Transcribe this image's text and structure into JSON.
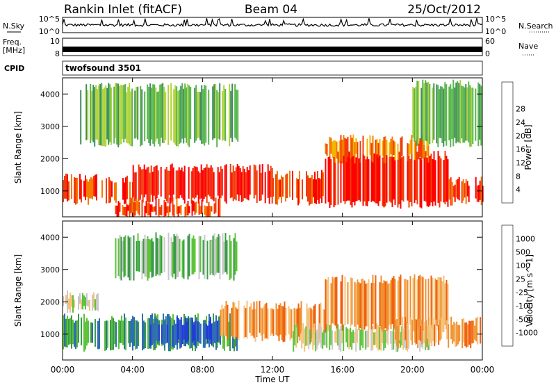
{
  "header": {
    "station": "Rankin Inlet (fitACF)",
    "beam": "Beam 04",
    "date": "25/Oct/2012"
  },
  "top_panels": {
    "nsky_label": "N.Sky",
    "nsky_tick_top": "10^5",
    "nsky_tick_bottom": "10^0",
    "nsearch_label": "N.Search",
    "nsearch_tick_top": "10^5",
    "nsearch_tick_bottom": "10^0",
    "freq_label_1": "Freq.",
    "freq_label_2": "[MHz]",
    "freq_tick_top": "10",
    "freq_tick_bottom": "8",
    "nave_label": "Nave",
    "nave_tick_top": "60",
    "nave_tick_bottom": "0",
    "cpid_label": "CPID",
    "cpid_value": "twofsound 3501"
  },
  "x_axis": {
    "label": "Time UT",
    "ticks": [
      "00:00",
      "04:00",
      "08:00",
      "12:00",
      "16:00",
      "20:00",
      "00:00"
    ],
    "range_hours": [
      0,
      24
    ]
  },
  "chart_data": [
    {
      "type": "heatmap",
      "quantity": "Power",
      "ylabel": "Slant Range [km]",
      "ylim": [
        200,
        4500
      ],
      "yticks": [
        "1000",
        "2000",
        "3000",
        "4000"
      ],
      "colorbar_label": "Power [dB]",
      "colorbar_ticks": [
        "4",
        "8",
        "12",
        "16",
        "20",
        "24",
        "28"
      ],
      "colorbar_colors": [
        "#0000ff",
        "#2c5fb0",
        "#3e8f5a",
        "#58b64a",
        "#b0d23a",
        "#f4b400",
        "#f57c00",
        "#f03e0a",
        "#ff0000"
      ],
      "bands": [
        {
          "t0": 0,
          "t1": 4,
          "r0": 700,
          "r1": 1400,
          "level": 7
        },
        {
          "t0": 4,
          "t1": 12,
          "r0": 750,
          "r1": 1700,
          "level": 8
        },
        {
          "t0": 12,
          "t1": 15,
          "r0": 700,
          "r1": 1500,
          "level": 7
        },
        {
          "t0": 15,
          "t1": 22,
          "r0": 600,
          "r1": 2100,
          "level": 8
        },
        {
          "t0": 22,
          "t1": 24,
          "r0": 700,
          "r1": 1300,
          "level": 7
        },
        {
          "t0": 3,
          "t1": 9,
          "r0": 250,
          "r1": 650,
          "level": 7
        },
        {
          "t0": 15,
          "t1": 21,
          "r0": 2000,
          "r1": 2600,
          "level": 6
        },
        {
          "t0": 1,
          "t1": 10,
          "r0": 2500,
          "r1": 4200,
          "level": 3
        },
        {
          "t0": 20,
          "t1": 24,
          "r0": 2500,
          "r1": 4300,
          "level": 3
        }
      ]
    },
    {
      "type": "heatmap",
      "quantity": "Velocity",
      "ylabel": "Slant Range [km]",
      "ylim": [
        200,
        4500
      ],
      "yticks": [
        "1000",
        "2000",
        "3000",
        "4000"
      ],
      "colorbar_label": "Velocity [m s^-1]",
      "colorbar_ticks": [
        "1000",
        "500",
        "100",
        "25",
        "-25",
        "-100",
        "-500",
        "-1000"
      ],
      "colorbar_colors": [
        "#1f3bd8",
        "#2f6fb0",
        "#3a9a4a",
        "#5cc33a",
        "#c8c8c8",
        "#f5c27a",
        "#f09030",
        "#f06010",
        "#ff0000"
      ],
      "bands": [
        {
          "t0": 0,
          "t1": 10,
          "r0": 600,
          "r1": 1500,
          "level": 2
        },
        {
          "t0": 5,
          "t1": 9,
          "r0": 700,
          "r1": 1400,
          "level": 0
        },
        {
          "t0": 9,
          "t1": 15,
          "r0": 900,
          "r1": 1900,
          "level": 6
        },
        {
          "t0": 13,
          "t1": 21,
          "r0": 600,
          "r1": 1200,
          "level": 4
        },
        {
          "t0": 15,
          "t1": 22,
          "r0": 1200,
          "r1": 2700,
          "level": 6
        },
        {
          "t0": 19,
          "t1": 24,
          "r0": 700,
          "r1": 1400,
          "level": 6
        },
        {
          "t0": 0,
          "t1": 2,
          "r0": 1800,
          "r1": 2200,
          "level": 4
        },
        {
          "t0": 3,
          "t1": 10,
          "r0": 2800,
          "r1": 4000,
          "level": 3
        }
      ]
    }
  ]
}
